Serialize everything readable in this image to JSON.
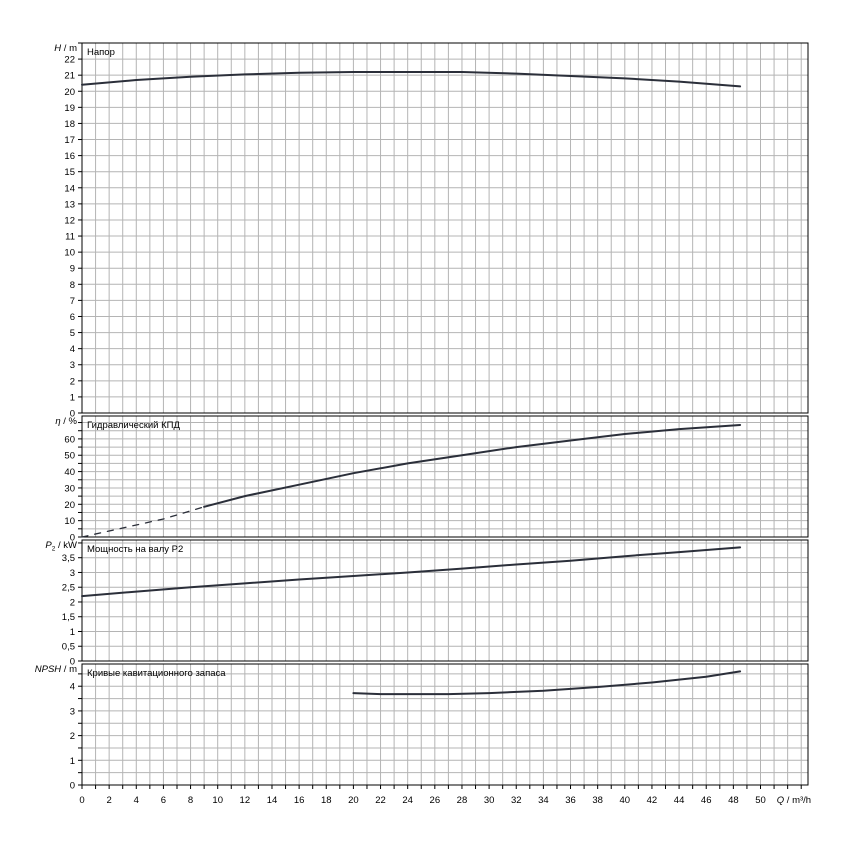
{
  "chart_data": [
    {
      "type": "line",
      "title": "Напор",
      "ylabel_symbol": "H",
      "ylabel_unit": "m",
      "ylim": [
        0,
        23
      ],
      "ytick_step": 1,
      "yticks_labeled": [
        0,
        1,
        2,
        3,
        4,
        5,
        6,
        7,
        8,
        9,
        10,
        11,
        12,
        13,
        14,
        15,
        16,
        17,
        18,
        19,
        20,
        21,
        22
      ],
      "series": [
        {
          "segments": [
            {
              "style": "solid",
              "x": [
                0,
                4,
                8,
                12,
                16,
                20,
                24,
                28,
                32,
                36,
                40,
                44,
                48.5
              ],
              "y": [
                20.4,
                20.7,
                20.9,
                21.05,
                21.15,
                21.2,
                21.2,
                21.2,
                21.1,
                20.95,
                20.8,
                20.6,
                20.3
              ]
            }
          ]
        }
      ]
    },
    {
      "type": "line",
      "title": "Гидравлический КПД",
      "ylabel_symbol": "η",
      "ylabel_unit": "%",
      "ylim": [
        0,
        74
      ],
      "ytick_step": 5,
      "yticks_labeled": [
        0,
        10,
        20,
        30,
        40,
        50,
        60
      ],
      "series": [
        {
          "segments": [
            {
              "style": "dashed",
              "x": [
                0,
                3,
                6,
                9
              ],
              "y": [
                0,
                5.5,
                11,
                18.5
              ]
            },
            {
              "style": "solid",
              "x": [
                9,
                12,
                16,
                20,
                24,
                28,
                32,
                36,
                40,
                44,
                48.5
              ],
              "y": [
                18.5,
                25,
                32,
                39,
                45,
                50,
                55,
                59,
                63,
                66,
                68.5
              ]
            }
          ]
        }
      ]
    },
    {
      "type": "line",
      "title": "Мощность на валу P2",
      "ylabel_symbol": "P",
      "ylabel_sub": "2",
      "ylabel_unit": "kW",
      "ylim": [
        0,
        4.1
      ],
      "ytick_step": 0.5,
      "yticks_labeled": [
        0,
        0.5,
        1,
        1.5,
        2,
        2.5,
        3,
        3.5
      ],
      "series": [
        {
          "segments": [
            {
              "style": "solid",
              "x": [
                0,
                4,
                8,
                12,
                16,
                20,
                24,
                28,
                32,
                36,
                40,
                44,
                48.5
              ],
              "y": [
                2.2,
                2.35,
                2.5,
                2.63,
                2.76,
                2.88,
                3.0,
                3.13,
                3.27,
                3.4,
                3.55,
                3.69,
                3.85
              ]
            }
          ]
        }
      ]
    },
    {
      "type": "line",
      "title": "Кривые кавитационного запаса",
      "ylabel_symbol": "NPSH",
      "ylabel_unit": "m",
      "ylim": [
        0,
        4.9
      ],
      "ytick_step": 0.5,
      "yticks_labeled": [
        0,
        1,
        2,
        3,
        4
      ],
      "series": [
        {
          "segments": [
            {
              "style": "solid",
              "x": [
                20,
                22,
                24,
                27,
                30,
                34,
                38,
                42,
                46,
                48.5
              ],
              "y": [
                3.72,
                3.68,
                3.68,
                3.68,
                3.72,
                3.82,
                3.97,
                4.15,
                4.38,
                4.6
              ]
            }
          ]
        }
      ]
    }
  ],
  "x_axis": {
    "symbol": "Q",
    "unit": "m³/h",
    "xlim": [
      0,
      53.5
    ],
    "tick_step": 1,
    "ticks_labeled": [
      0,
      2,
      4,
      6,
      8,
      10,
      12,
      14,
      16,
      18,
      20,
      22,
      24,
      26,
      28,
      30,
      32,
      34,
      36,
      38,
      40,
      42,
      44,
      46,
      48,
      50
    ]
  },
  "colors": {
    "grid": "#b4b4b4",
    "curve": "#2b2f3a",
    "frame": "#000000"
  }
}
